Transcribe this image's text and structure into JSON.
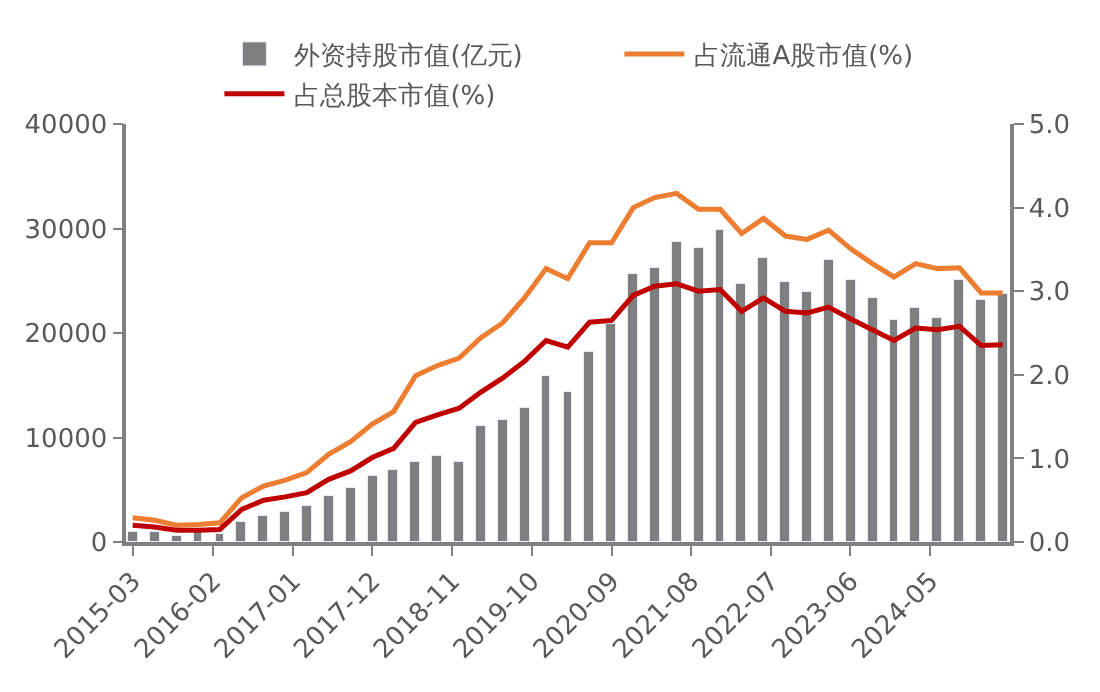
{
  "chart_data": {
    "type": "bar",
    "x": [
      "2015-03",
      "2015-06",
      "2015-09",
      "2015-12",
      "2016-03",
      "2016-06",
      "2016-09",
      "2016-12",
      "2017-03",
      "2017-06",
      "2017-09",
      "2017-12",
      "2018-03",
      "2018-06",
      "2018-09",
      "2018-12",
      "2019-03",
      "2019-06",
      "2019-09",
      "2019-12",
      "2020-03",
      "2020-06",
      "2020-09",
      "2020-12",
      "2021-03",
      "2021-06",
      "2021-09",
      "2021-12",
      "2022-03",
      "2022-06",
      "2022-09",
      "2022-12",
      "2023-03",
      "2023-06",
      "2023-09",
      "2023-12",
      "2024-03",
      "2024-06",
      "2024-09",
      "2024-12",
      "2025-03"
    ],
    "series": [
      {
        "name": "外资持股市值(亿元)",
        "color": "#7f7f7f",
        "values": [
          1000,
          1000,
          500,
          900,
          700,
          1900,
          2500,
          2800,
          3400,
          4400,
          5200,
          6300,
          6800,
          7700,
          8200,
          7700,
          11100,
          11600,
          12900,
          15800,
          14300,
          18100,
          20800,
          25600,
          26200,
          28800,
          28100,
          29900,
          24600,
          27200,
          24900,
          23900,
          26900,
          25100,
          23300,
          21300,
          22300,
          21500,
          25100,
          23100,
          23700
        ]
      },
      {
        "name": "占流通A股市值(%)",
        "type": "line",
        "axis": "y2",
        "color": "#ed7d31",
        "values": [
          0.29,
          0.26,
          0.2,
          0.21,
          0.23,
          0.53,
          0.67,
          0.74,
          0.83,
          1.05,
          1.2,
          1.41,
          1.56,
          1.99,
          2.11,
          2.2,
          2.44,
          2.62,
          2.92,
          3.27,
          3.15,
          3.58,
          3.58,
          4.0,
          4.12,
          4.17,
          3.98,
          3.98,
          3.69,
          3.87,
          3.66,
          3.62,
          3.73,
          3.51,
          3.33,
          3.17,
          3.33,
          3.27,
          3.28,
          2.98,
          2.98
        ]
      },
      {
        "name": "占总股本市值(%)",
        "type": "line",
        "axis": "y2",
        "color": "#c00000",
        "values": [
          0.2,
          0.18,
          0.14,
          0.14,
          0.15,
          0.39,
          0.5,
          0.54,
          0.59,
          0.75,
          0.85,
          1.01,
          1.12,
          1.43,
          1.52,
          1.6,
          1.79,
          1.96,
          2.16,
          2.41,
          2.33,
          2.63,
          2.65,
          2.95,
          3.06,
          3.09,
          3.0,
          3.02,
          2.76,
          2.92,
          2.76,
          2.74,
          2.81,
          2.67,
          2.54,
          2.41,
          2.56,
          2.54,
          2.58,
          2.35,
          2.36
        ]
      }
    ],
    "xlim": [
      "2015-02",
      "2025-04"
    ],
    "xticks": [
      "2015-03",
      "2016-02",
      "2017-01",
      "2017-12",
      "2018-11",
      "2019-10",
      "2020-09",
      "2021-08",
      "2022-07",
      "2023-06",
      "2024-05"
    ],
    "ylim": [
      0,
      40000
    ],
    "yticks": [
      0,
      10000,
      20000,
      30000,
      40000
    ],
    "y2lim": [
      0,
      5.0
    ],
    "y2ticks": [
      {
        "value": 0,
        "label": "0.0"
      },
      {
        "value": 1,
        "label": "1.0"
      },
      {
        "value": 2,
        "label": "2.0"
      },
      {
        "value": 3,
        "label": "3.0"
      },
      {
        "value": 4,
        "label": "4.0"
      },
      {
        "value": 5,
        "label": "5.0"
      }
    ],
    "legend": "top",
    "line_style": "solid",
    "marker": "none"
  }
}
